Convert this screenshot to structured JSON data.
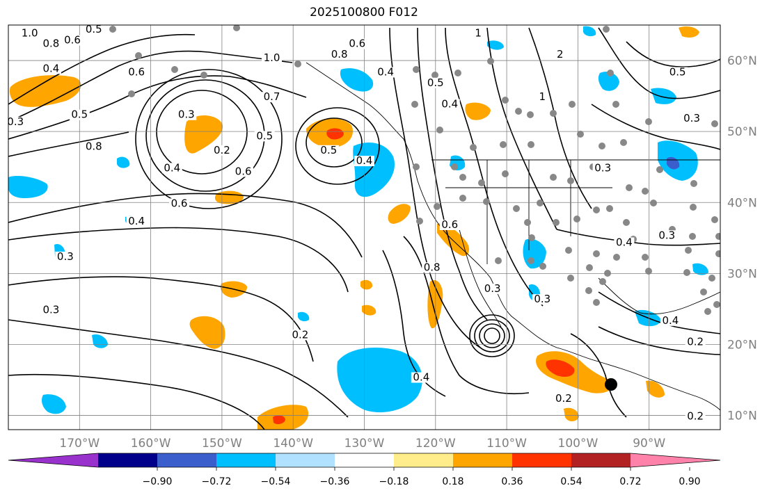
{
  "title": "2025100800 F012",
  "map": {
    "lon_range": [
      -180,
      -80
    ],
    "lat_range": [
      8,
      65
    ],
    "lat_ticks": [
      {
        "value": 60,
        "label": "60°N"
      },
      {
        "value": 50,
        "label": "50°N"
      },
      {
        "value": 40,
        "label": "40°N"
      },
      {
        "value": 30,
        "label": "30°N"
      },
      {
        "value": 20,
        "label": "20°N"
      },
      {
        "value": 10,
        "label": "10°N"
      }
    ],
    "lon_ticks": [
      {
        "value": -170,
        "label": "170°W"
      },
      {
        "value": -160,
        "label": "160°W"
      },
      {
        "value": -150,
        "label": "150°W"
      },
      {
        "value": -140,
        "label": "140°W"
      },
      {
        "value": -130,
        "label": "130°W"
      },
      {
        "value": -120,
        "label": "120°W"
      },
      {
        "value": -110,
        "label": "110°W"
      },
      {
        "value": -100,
        "label": "100°W"
      },
      {
        "value": -90,
        "label": "90°W"
      }
    ],
    "contour_labels": [
      {
        "text": "1.0",
        "lon": -177,
        "lat": 63.5
      },
      {
        "text": "0.8",
        "lon": -174,
        "lat": 62
      },
      {
        "text": "0.6",
        "lon": -171,
        "lat": 62.5
      },
      {
        "text": "0.5",
        "lon": -168,
        "lat": 64
      },
      {
        "text": "0.4",
        "lon": -174,
        "lat": 58.5
      },
      {
        "text": "0.5",
        "lon": -170,
        "lat": 52
      },
      {
        "text": "0.3",
        "lon": -179,
        "lat": 51
      },
      {
        "text": "0.8",
        "lon": -168,
        "lat": 47.5
      },
      {
        "text": "0.6",
        "lon": -162,
        "lat": 58
      },
      {
        "text": "0.3",
        "lon": -155,
        "lat": 52
      },
      {
        "text": "0.2",
        "lon": -150,
        "lat": 47
      },
      {
        "text": "0.4",
        "lon": -157,
        "lat": 44.5
      },
      {
        "text": "0.5",
        "lon": -144,
        "lat": 49
      },
      {
        "text": "0.6",
        "lon": -147,
        "lat": 44
      },
      {
        "text": "0.7",
        "lon": -143,
        "lat": 54.5
      },
      {
        "text": "1.0",
        "lon": -143,
        "lat": 60
      },
      {
        "text": "0.6",
        "lon": -156,
        "lat": 39.5
      },
      {
        "text": "0.4",
        "lon": -162,
        "lat": 37
      },
      {
        "text": "0.5",
        "lon": -135,
        "lat": 47
      },
      {
        "text": "0.4",
        "lon": -130,
        "lat": 45.5
      },
      {
        "text": "0.8",
        "lon": -133.5,
        "lat": 60.5
      },
      {
        "text": "0.6",
        "lon": -131,
        "lat": 62
      },
      {
        "text": "0.4",
        "lon": -127,
        "lat": 58
      },
      {
        "text": "0.5",
        "lon": -120,
        "lat": 56.5
      },
      {
        "text": "0.4",
        "lon": -118,
        "lat": 53.5
      },
      {
        "text": "1",
        "lon": -114,
        "lat": 63.5
      },
      {
        "text": "1",
        "lon": -105,
        "lat": 54.5
      },
      {
        "text": "2",
        "lon": -102.5,
        "lat": 60.5
      },
      {
        "text": "0.5",
        "lon": -86,
        "lat": 58
      },
      {
        "text": "0.3",
        "lon": -84,
        "lat": 51.5
      },
      {
        "text": "0.3",
        "lon": -96.5,
        "lat": 44.5
      },
      {
        "text": "0.4",
        "lon": -93.5,
        "lat": 34
      },
      {
        "text": "0.3",
        "lon": -87.5,
        "lat": 35
      },
      {
        "text": "0.4",
        "lon": -87,
        "lat": 23
      },
      {
        "text": "0.2",
        "lon": -83.5,
        "lat": 20
      },
      {
        "text": "0.8",
        "lon": -120.5,
        "lat": 30.5
      },
      {
        "text": "0.6",
        "lon": -118,
        "lat": 36.5
      },
      {
        "text": "0.3",
        "lon": -112,
        "lat": 27.5
      },
      {
        "text": "0.3",
        "lon": -172,
        "lat": 32
      },
      {
        "text": "0.3",
        "lon": -174,
        "lat": 24.5
      },
      {
        "text": "0.2",
        "lon": -139,
        "lat": 21
      },
      {
        "text": "0.4",
        "lon": -122,
        "lat": 15
      },
      {
        "text": "0.2",
        "lon": -102,
        "lat": 12
      },
      {
        "text": "0.2",
        "lon": -83.5,
        "lat": 9.5
      },
      {
        "text": "0.3",
        "lon": -105,
        "lat": 26
      }
    ]
  },
  "colorbar": {
    "colors": [
      "#9932cc",
      "#00008b",
      "#3a5fcd",
      "#00bfff",
      "#b0e2ff",
      "#ffffff",
      "#ffec8b",
      "#ffa500",
      "#ff3300",
      "#b22222",
      "#ff82ab"
    ],
    "tick_labels": [
      "−0.90",
      "−0.72",
      "−0.54",
      "−0.36",
      "−0.18",
      "0.18",
      "0.36",
      "0.54",
      "0.72",
      "0.90"
    ]
  },
  "fill_colors": {
    "orange": "#ffa500",
    "red": "#ff3300",
    "cyan": "#00bfff",
    "blue": "#3a5fcd"
  }
}
